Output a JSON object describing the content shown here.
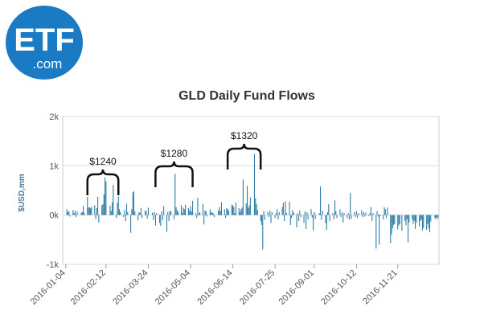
{
  "logo": {
    "line1": "ETF",
    "line2": ".com",
    "color": "#1a7bc4"
  },
  "chart_data": {
    "type": "bar",
    "title": "GLD Daily Fund Flows",
    "xlabel": "",
    "ylabel": "$USD,mm",
    "ylim": [
      -1000,
      2000
    ],
    "yticks": [
      {
        "value": -1000,
        "label": "-1k"
      },
      {
        "value": 0,
        "label": "0k"
      },
      {
        "value": 1000,
        "label": "1k"
      },
      {
        "value": 2000,
        "label": "2k"
      }
    ],
    "xlim": [
      "2016-01-01",
      "2016-12-31"
    ],
    "xticks": [
      "2016-01-04",
      "2016-02-12",
      "2016-03-24",
      "2016-05-04",
      "2016-06-14",
      "2016-07-25",
      "2016-09-01",
      "2016-10-12",
      "2016-11-21"
    ],
    "grid": true,
    "bar_color": "#2f7ea6",
    "annotations": [
      {
        "label": "$1240",
        "from": "2016-01-25",
        "to": "2016-02-24"
      },
      {
        "label": "$1280",
        "from": "2016-03-31",
        "to": "2016-05-06"
      },
      {
        "label": "$1320",
        "from": "2016-06-09",
        "to": "2016-07-11"
      }
    ],
    "series": [
      {
        "values": [
          [
            "2016-01-05",
            120
          ],
          [
            "2016-01-06",
            60
          ],
          [
            "2016-01-07",
            80
          ],
          [
            "2016-01-08",
            -30
          ],
          [
            "2016-01-11",
            100
          ],
          [
            "2016-01-12",
            40
          ],
          [
            "2016-01-13",
            90
          ],
          [
            "2016-01-14",
            -40
          ],
          [
            "2016-01-15",
            70
          ],
          [
            "2016-01-19",
            50
          ],
          [
            "2016-01-20",
            60
          ],
          [
            "2016-01-21",
            180
          ],
          [
            "2016-01-22",
            40
          ],
          [
            "2016-01-25",
            370
          ],
          [
            "2016-01-26",
            150
          ],
          [
            "2016-01-27",
            160
          ],
          [
            "2016-01-28",
            140
          ],
          [
            "2016-01-29",
            170
          ],
          [
            "2016-02-01",
            200
          ],
          [
            "2016-02-02",
            -80
          ],
          [
            "2016-02-03",
            140
          ],
          [
            "2016-02-04",
            370
          ],
          [
            "2016-02-05",
            -150
          ],
          [
            "2016-02-08",
            200
          ],
          [
            "2016-02-09",
            220
          ],
          [
            "2016-02-10",
            420
          ],
          [
            "2016-02-11",
            760
          ],
          [
            "2016-02-12",
            680
          ],
          [
            "2016-02-16",
            190
          ],
          [
            "2016-02-17",
            80
          ],
          [
            "2016-02-18",
            260
          ],
          [
            "2016-02-19",
            610
          ],
          [
            "2016-02-22",
            -60
          ],
          [
            "2016-02-23",
            250
          ],
          [
            "2016-02-24",
            380
          ],
          [
            "2016-02-25",
            120
          ],
          [
            "2016-02-26",
            60
          ],
          [
            "2016-02-29",
            -40
          ],
          [
            "2016-03-01",
            100
          ],
          [
            "2016-03-02",
            -120
          ],
          [
            "2016-03-03",
            230
          ],
          [
            "2016-03-04",
            60
          ],
          [
            "2016-03-07",
            -360
          ],
          [
            "2016-03-08",
            120
          ],
          [
            "2016-03-09",
            460
          ],
          [
            "2016-03-10",
            480
          ],
          [
            "2016-03-11",
            70
          ],
          [
            "2016-03-14",
            -110
          ],
          [
            "2016-03-15",
            60
          ],
          [
            "2016-03-16",
            40
          ],
          [
            "2016-03-17",
            140
          ],
          [
            "2016-03-18",
            -60
          ],
          [
            "2016-03-21",
            90
          ],
          [
            "2016-03-22",
            80
          ],
          [
            "2016-03-23",
            -70
          ],
          [
            "2016-03-24",
            150
          ],
          [
            "2016-03-28",
            50
          ],
          [
            "2016-03-29",
            -100
          ],
          [
            "2016-03-30",
            60
          ],
          [
            "2016-03-31",
            -210
          ],
          [
            "2016-04-01",
            40
          ],
          [
            "2016-04-04",
            -160
          ],
          [
            "2016-04-05",
            -220
          ],
          [
            "2016-04-06",
            80
          ],
          [
            "2016-04-07",
            -100
          ],
          [
            "2016-04-08",
            180
          ],
          [
            "2016-04-11",
            -340
          ],
          [
            "2016-04-12",
            60
          ],
          [
            "2016-04-13",
            -120
          ],
          [
            "2016-04-14",
            90
          ],
          [
            "2016-04-15",
            70
          ],
          [
            "2016-04-18",
            -90
          ],
          [
            "2016-04-19",
            840
          ],
          [
            "2016-04-20",
            160
          ],
          [
            "2016-04-21",
            100
          ],
          [
            "2016-04-22",
            60
          ],
          [
            "2016-04-25",
            200
          ],
          [
            "2016-04-26",
            40
          ],
          [
            "2016-04-27",
            150
          ],
          [
            "2016-04-28",
            120
          ],
          [
            "2016-04-29",
            210
          ],
          [
            "2016-05-02",
            140
          ],
          [
            "2016-05-03",
            90
          ],
          [
            "2016-05-04",
            180
          ],
          [
            "2016-05-05",
            70
          ],
          [
            "2016-05-06",
            290
          ],
          [
            "2016-05-09",
            40
          ],
          [
            "2016-05-10",
            -60
          ],
          [
            "2016-05-11",
            350
          ],
          [
            "2016-05-12",
            30
          ],
          [
            "2016-05-13",
            60
          ],
          [
            "2016-05-16",
            230
          ],
          [
            "2016-05-17",
            -190
          ],
          [
            "2016-05-18",
            90
          ],
          [
            "2016-05-19",
            80
          ],
          [
            "2016-05-20",
            -30
          ],
          [
            "2016-05-23",
            120
          ],
          [
            "2016-05-24",
            50
          ],
          [
            "2016-05-25",
            60
          ],
          [
            "2016-05-26",
            40
          ],
          [
            "2016-05-27",
            -40
          ],
          [
            "2016-05-31",
            90
          ],
          [
            "2016-06-01",
            160
          ],
          [
            "2016-06-02",
            80
          ],
          [
            "2016-06-03",
            260
          ],
          [
            "2016-06-06",
            120
          ],
          [
            "2016-06-07",
            -60
          ],
          [
            "2016-06-08",
            140
          ],
          [
            "2016-06-09",
            120
          ],
          [
            "2016-06-10",
            90
          ],
          [
            "2016-06-13",
            210
          ],
          [
            "2016-06-14",
            200
          ],
          [
            "2016-06-15",
            160
          ],
          [
            "2016-06-16",
            40
          ],
          [
            "2016-06-17",
            250
          ],
          [
            "2016-06-20",
            140
          ],
          [
            "2016-06-21",
            60
          ],
          [
            "2016-06-22",
            120
          ],
          [
            "2016-06-23",
            150
          ],
          [
            "2016-06-24",
            720
          ],
          [
            "2016-06-27",
            240
          ],
          [
            "2016-06-28",
            590
          ],
          [
            "2016-06-29",
            150
          ],
          [
            "2016-06-30",
            200
          ],
          [
            "2016-07-01",
            360
          ],
          [
            "2016-07-05",
            1240
          ],
          [
            "2016-07-06",
            340
          ],
          [
            "2016-07-07",
            220
          ],
          [
            "2016-07-08",
            100
          ],
          [
            "2016-07-11",
            -120
          ],
          [
            "2016-07-12",
            -200
          ],
          [
            "2016-07-13",
            -700
          ],
          [
            "2016-07-14",
            80
          ],
          [
            "2016-07-15",
            -100
          ],
          [
            "2016-07-18",
            60
          ],
          [
            "2016-07-19",
            -40
          ],
          [
            "2016-07-20",
            90
          ],
          [
            "2016-07-21",
            -160
          ],
          [
            "2016-07-22",
            60
          ],
          [
            "2016-07-25",
            -60
          ],
          [
            "2016-07-26",
            40
          ],
          [
            "2016-07-27",
            120
          ],
          [
            "2016-07-28",
            -90
          ],
          [
            "2016-07-29",
            60
          ],
          [
            "2016-08-01",
            160
          ],
          [
            "2016-08-02",
            250
          ],
          [
            "2016-08-03",
            -120
          ],
          [
            "2016-08-04",
            280
          ],
          [
            "2016-08-05",
            40
          ],
          [
            "2016-08-08",
            270
          ],
          [
            "2016-08-09",
            -200
          ],
          [
            "2016-08-10",
            -60
          ],
          [
            "2016-08-11",
            100
          ],
          [
            "2016-08-12",
            50
          ],
          [
            "2016-08-15",
            -250
          ],
          [
            "2016-08-16",
            40
          ],
          [
            "2016-08-17",
            -120
          ],
          [
            "2016-08-18",
            90
          ],
          [
            "2016-08-19",
            -40
          ],
          [
            "2016-08-22",
            -160
          ],
          [
            "2016-08-23",
            70
          ],
          [
            "2016-08-24",
            -280
          ],
          [
            "2016-08-25",
            60
          ],
          [
            "2016-08-26",
            -90
          ],
          [
            "2016-08-29",
            120
          ],
          [
            "2016-08-30",
            -50
          ],
          [
            "2016-08-31",
            -310
          ],
          [
            "2016-09-01",
            60
          ],
          [
            "2016-09-02",
            -80
          ],
          [
            "2016-09-06",
            40
          ],
          [
            "2016-09-07",
            580
          ],
          [
            "2016-09-08",
            -100
          ],
          [
            "2016-09-09",
            90
          ],
          [
            "2016-09-12",
            -160
          ],
          [
            "2016-09-13",
            -300
          ],
          [
            "2016-09-14",
            60
          ],
          [
            "2016-09-15",
            220
          ],
          [
            "2016-09-16",
            -120
          ],
          [
            "2016-09-19",
            40
          ],
          [
            "2016-09-20",
            -90
          ],
          [
            "2016-09-21",
            300
          ],
          [
            "2016-09-22",
            80
          ],
          [
            "2016-09-23",
            -60
          ],
          [
            "2016-09-26",
            120
          ],
          [
            "2016-09-27",
            -40
          ],
          [
            "2016-09-28",
            60
          ],
          [
            "2016-09-29",
            -150
          ],
          [
            "2016-09-30",
            40
          ],
          [
            "2016-10-03",
            -60
          ],
          [
            "2016-10-04",
            40
          ],
          [
            "2016-10-05",
            -90
          ],
          [
            "2016-10-06",
            450
          ],
          [
            "2016-10-07",
            -80
          ],
          [
            "2016-10-10",
            60
          ],
          [
            "2016-10-11",
            -40
          ],
          [
            "2016-10-12",
            80
          ],
          [
            "2016-10-13",
            -60
          ],
          [
            "2016-10-14",
            40
          ],
          [
            "2016-10-17",
            100
          ],
          [
            "2016-10-18",
            -40
          ],
          [
            "2016-10-19",
            60
          ],
          [
            "2016-10-20",
            -30
          ],
          [
            "2016-10-21",
            50
          ],
          [
            "2016-10-24",
            -20
          ],
          [
            "2016-10-25",
            40
          ],
          [
            "2016-10-26",
            160
          ],
          [
            "2016-10-27",
            -120
          ],
          [
            "2016-10-28",
            40
          ],
          [
            "2016-10-31",
            -680
          ],
          [
            "2016-11-01",
            80
          ],
          [
            "2016-11-02",
            -30
          ],
          [
            "2016-11-03",
            -600
          ],
          [
            "2016-11-04",
            -20
          ],
          [
            "2016-11-07",
            -90
          ],
          [
            "2016-11-08",
            160
          ],
          [
            "2016-11-09",
            120
          ],
          [
            "2016-11-10",
            -60
          ],
          [
            "2016-11-11",
            150
          ],
          [
            "2016-11-14",
            -570
          ],
          [
            "2016-11-15",
            -390
          ],
          [
            "2016-11-16",
            -270
          ],
          [
            "2016-11-17",
            -200
          ],
          [
            "2016-11-18",
            -180
          ],
          [
            "2016-11-21",
            -290
          ],
          [
            "2016-11-22",
            -210
          ],
          [
            "2016-11-23",
            -180
          ],
          [
            "2016-11-25",
            -320
          ],
          [
            "2016-11-28",
            -120
          ],
          [
            "2016-11-29",
            -210
          ],
          [
            "2016-11-30",
            -80
          ],
          [
            "2016-12-01",
            -550
          ],
          [
            "2016-12-02",
            -150
          ],
          [
            "2016-12-05",
            -90
          ],
          [
            "2016-12-06",
            -180
          ],
          [
            "2016-12-07",
            -120
          ],
          [
            "2016-12-08",
            -280
          ],
          [
            "2016-12-09",
            -160
          ],
          [
            "2016-12-12",
            -230
          ],
          [
            "2016-12-13",
            -120
          ],
          [
            "2016-12-14",
            -90
          ],
          [
            "2016-12-15",
            -310
          ],
          [
            "2016-12-16",
            -260
          ],
          [
            "2016-12-19",
            -300
          ],
          [
            "2016-12-20",
            -180
          ],
          [
            "2016-12-21",
            -270
          ],
          [
            "2016-12-22",
            -350
          ],
          [
            "2016-12-23",
            -130
          ],
          [
            "2016-12-27",
            -60
          ],
          [
            "2016-12-28",
            -90
          ],
          [
            "2016-12-29",
            -40
          ],
          [
            "2016-12-30",
            -70
          ]
        ]
      }
    ]
  }
}
